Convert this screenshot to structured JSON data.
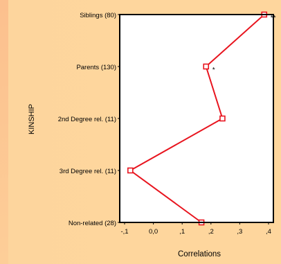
{
  "chart_data": {
    "type": "line",
    "orientation": "horizontal",
    "xlabel": "Correlations",
    "ylabel": "KINSHIP",
    "xlim": [
      -0.1,
      0.4
    ],
    "x_ticks": [
      {
        "value": -0.1,
        "label": "-,1"
      },
      {
        "value": 0.0,
        "label": "0,0"
      },
      {
        "value": 0.1,
        "label": ",1"
      },
      {
        "value": 0.2,
        "label": ",2"
      },
      {
        "value": 0.3,
        "label": ",3"
      },
      {
        "value": 0.4,
        "label": ",4"
      }
    ],
    "categories": [
      "Siblings (80)",
      "Parents (130)",
      "2nd Degree rel. (11)",
      "3rd Degree rel. (11)",
      "Non-related (28)"
    ],
    "series": [
      {
        "values": [
          0.385,
          0.183,
          0.24,
          -0.08,
          0.167
        ],
        "annotations": [
          "**",
          "*",
          "",
          "",
          ""
        ],
        "color": "#E8141E"
      }
    ],
    "grid": false,
    "legend": "none"
  }
}
